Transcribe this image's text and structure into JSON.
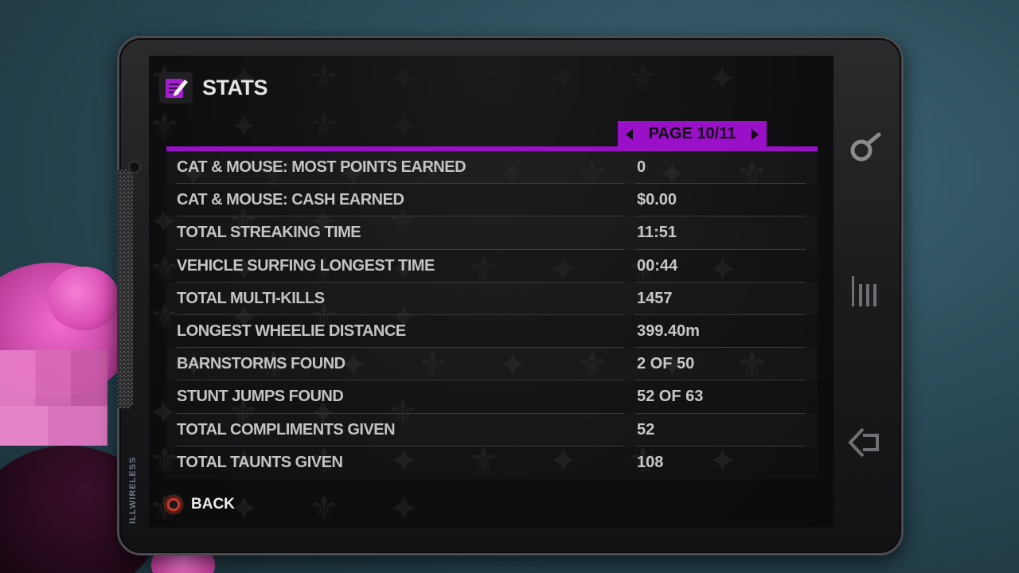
{
  "header": {
    "title": "STATS",
    "icon": "notepad-pencil-icon"
  },
  "pagination": {
    "label": "PAGE 10/11"
  },
  "stats": [
    {
      "label": "CAT & MOUSE: MOST POINTS EARNED",
      "value": "0"
    },
    {
      "label": "CAT & MOUSE: CASH EARNED",
      "value": "$0.00"
    },
    {
      "label": "TOTAL STREAKING TIME",
      "value": "11:51"
    },
    {
      "label": "VEHICLE SURFING LONGEST TIME",
      "value": "00:44"
    },
    {
      "label": "TOTAL MULTI-KILLS",
      "value": "1457"
    },
    {
      "label": "LONGEST WHEELIE DISTANCE",
      "value": "399.40m"
    },
    {
      "label": "BARNSTORMS FOUND",
      "value": "2 OF 50"
    },
    {
      "label": "STUNT JUMPS FOUND",
      "value": "52 OF 63"
    },
    {
      "label": "TOTAL COMPLIMENTS GIVEN",
      "value": "52"
    },
    {
      "label": "TOTAL TAUNTS GIVEN",
      "value": "108"
    }
  ],
  "footer": {
    "back_label": "BACK",
    "back_button_icon": "circle-button-icon"
  },
  "device": {
    "brand": "ILLWIRELESS",
    "side_icons": [
      "search-icon",
      "menu-bars-icon",
      "back-arrow-icon"
    ]
  },
  "colors": {
    "accent": "#9a0fc8",
    "text": "#c4c4c4",
    "background": "#0f0f11"
  }
}
